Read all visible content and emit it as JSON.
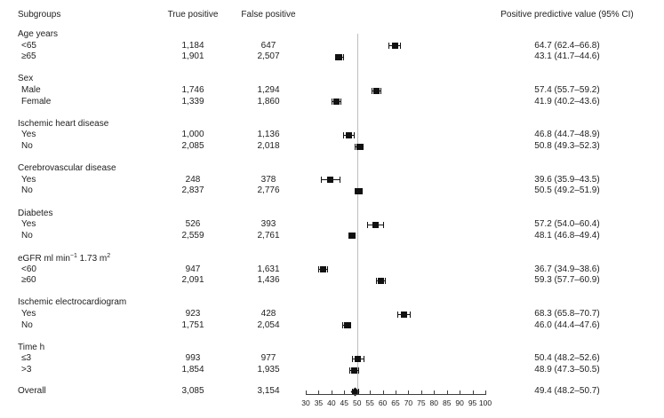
{
  "figure": {
    "columns": {
      "subgroups": "Subgroups",
      "true_positive": "True positive",
      "false_positive": "False positive",
      "ppv": "Positive predictive value (95% CI)"
    }
  },
  "colors": {
    "marker": "#111111",
    "reference_line": "#bdbdbd",
    "axis": "#3d3d3d",
    "text": "#212121"
  },
  "chart_data": {
    "type": "forest",
    "title": "",
    "xlabel": "",
    "legend": "none",
    "axis": {
      "min": 30,
      "max": 100,
      "tick_step": 5,
      "tick_labels": [
        "30",
        "35",
        "40",
        "45",
        "50",
        "55",
        "60",
        "65",
        "70",
        "75",
        "80",
        "85",
        "90",
        "95",
        "100"
      ],
      "reference_line": 50
    },
    "groups": [
      {
        "label": "Age years",
        "items": [
          {
            "label": "<65",
            "tp": "1,184",
            "fp": "647",
            "ppv": "64.7 (62.4–66.8)",
            "est": 64.7,
            "lo": 62.4,
            "hi": 66.8
          },
          {
            "label": "≥65",
            "tp": "1,901",
            "fp": "2,507",
            "ppv": "43.1 (41.7–44.6)",
            "est": 43.1,
            "lo": 41.7,
            "hi": 44.6
          }
        ]
      },
      {
        "label": "Sex",
        "items": [
          {
            "label": "Male",
            "tp": "1,746",
            "fp": "1,294",
            "ppv": "57.4 (55.7–59.2)",
            "est": 57.4,
            "lo": 55.7,
            "hi": 59.2
          },
          {
            "label": "Female",
            "tp": "1,339",
            "fp": "1,860",
            "ppv": "41.9 (40.2–43.6)",
            "est": 41.9,
            "lo": 40.2,
            "hi": 43.6
          }
        ]
      },
      {
        "label": "Ischemic heart disease",
        "items": [
          {
            "label": "Yes",
            "tp": "1,000",
            "fp": "1,136",
            "ppv": "46.8 (44.7–48.9)",
            "est": 46.8,
            "lo": 44.7,
            "hi": 48.9
          },
          {
            "label": "No",
            "tp": "2,085",
            "fp": "2,018",
            "ppv": "50.8 (49.3–52.3)",
            "est": 50.8,
            "lo": 49.3,
            "hi": 52.3
          }
        ]
      },
      {
        "label": "Cerebrovascular disease",
        "items": [
          {
            "label": "Yes",
            "tp": "248",
            "fp": "378",
            "ppv": "39.6 (35.9–43.5)",
            "est": 39.6,
            "lo": 35.9,
            "hi": 43.5
          },
          {
            "label": "No",
            "tp": "2,837",
            "fp": "2,776",
            "ppv": "50.5 (49.2–51.9)",
            "est": 50.5,
            "lo": 49.2,
            "hi": 51.9
          }
        ]
      },
      {
        "label": "Diabetes",
        "items": [
          {
            "label": "Yes",
            "tp": "526",
            "fp": "393",
            "ppv": "57.2 (54.0–60.4)",
            "est": 57.2,
            "lo": 54.0,
            "hi": 60.4
          },
          {
            "label": "No",
            "tp": "2,559",
            "fp": "2,761",
            "ppv": "48.1 (46.8–49.4)",
            "est": 48.1,
            "lo": 46.8,
            "hi": 49.4
          }
        ]
      },
      {
        "label": "eGFR ml min−1 1.73 m2",
        "label_parts": [
          {
            "t": "eGFR ml min"
          },
          {
            "t": "−1",
            "sup": true
          },
          {
            "t": " 1.73 m"
          },
          {
            "t": "2",
            "sup": true
          }
        ],
        "items": [
          {
            "label": "<60",
            "tp": "947",
            "fp": "1,631",
            "ppv": "36.7 (34.9–38.6)",
            "est": 36.7,
            "lo": 34.9,
            "hi": 38.6
          },
          {
            "label": "≥60",
            "tp": "2,091",
            "fp": "1,436",
            "ppv": "59.3 (57.7–60.9)",
            "est": 59.3,
            "lo": 57.7,
            "hi": 60.9
          }
        ]
      },
      {
        "label": "Ischemic electrocardiogram",
        "items": [
          {
            "label": "Yes",
            "tp": "923",
            "fp": "428",
            "ppv": "68.3 (65.8–70.7)",
            "est": 68.3,
            "lo": 65.8,
            "hi": 70.7
          },
          {
            "label": "No",
            "tp": "1,751",
            "fp": "2,054",
            "ppv": "46.0 (44.4–47.6)",
            "est": 46.0,
            "lo": 44.4,
            "hi": 47.6
          }
        ]
      },
      {
        "label": "Time h",
        "items": [
          {
            "label": "≤3",
            "tp": "993",
            "fp": "977",
            "ppv": "50.4 (48.2–52.6)",
            "est": 50.4,
            "lo": 48.2,
            "hi": 52.6
          },
          {
            "label": ">3",
            "tp": "1,854",
            "fp": "1,935",
            "ppv": "48.9 (47.3–50.5)",
            "est": 48.9,
            "lo": 47.3,
            "hi": 50.5
          }
        ]
      }
    ],
    "overall": {
      "label": "Overall",
      "tp": "3,085",
      "fp": "3,154",
      "ppv": "49.4 (48.2–50.7)",
      "est": 49.4,
      "lo": 48.2,
      "hi": 50.7,
      "marker": "diamond"
    }
  }
}
